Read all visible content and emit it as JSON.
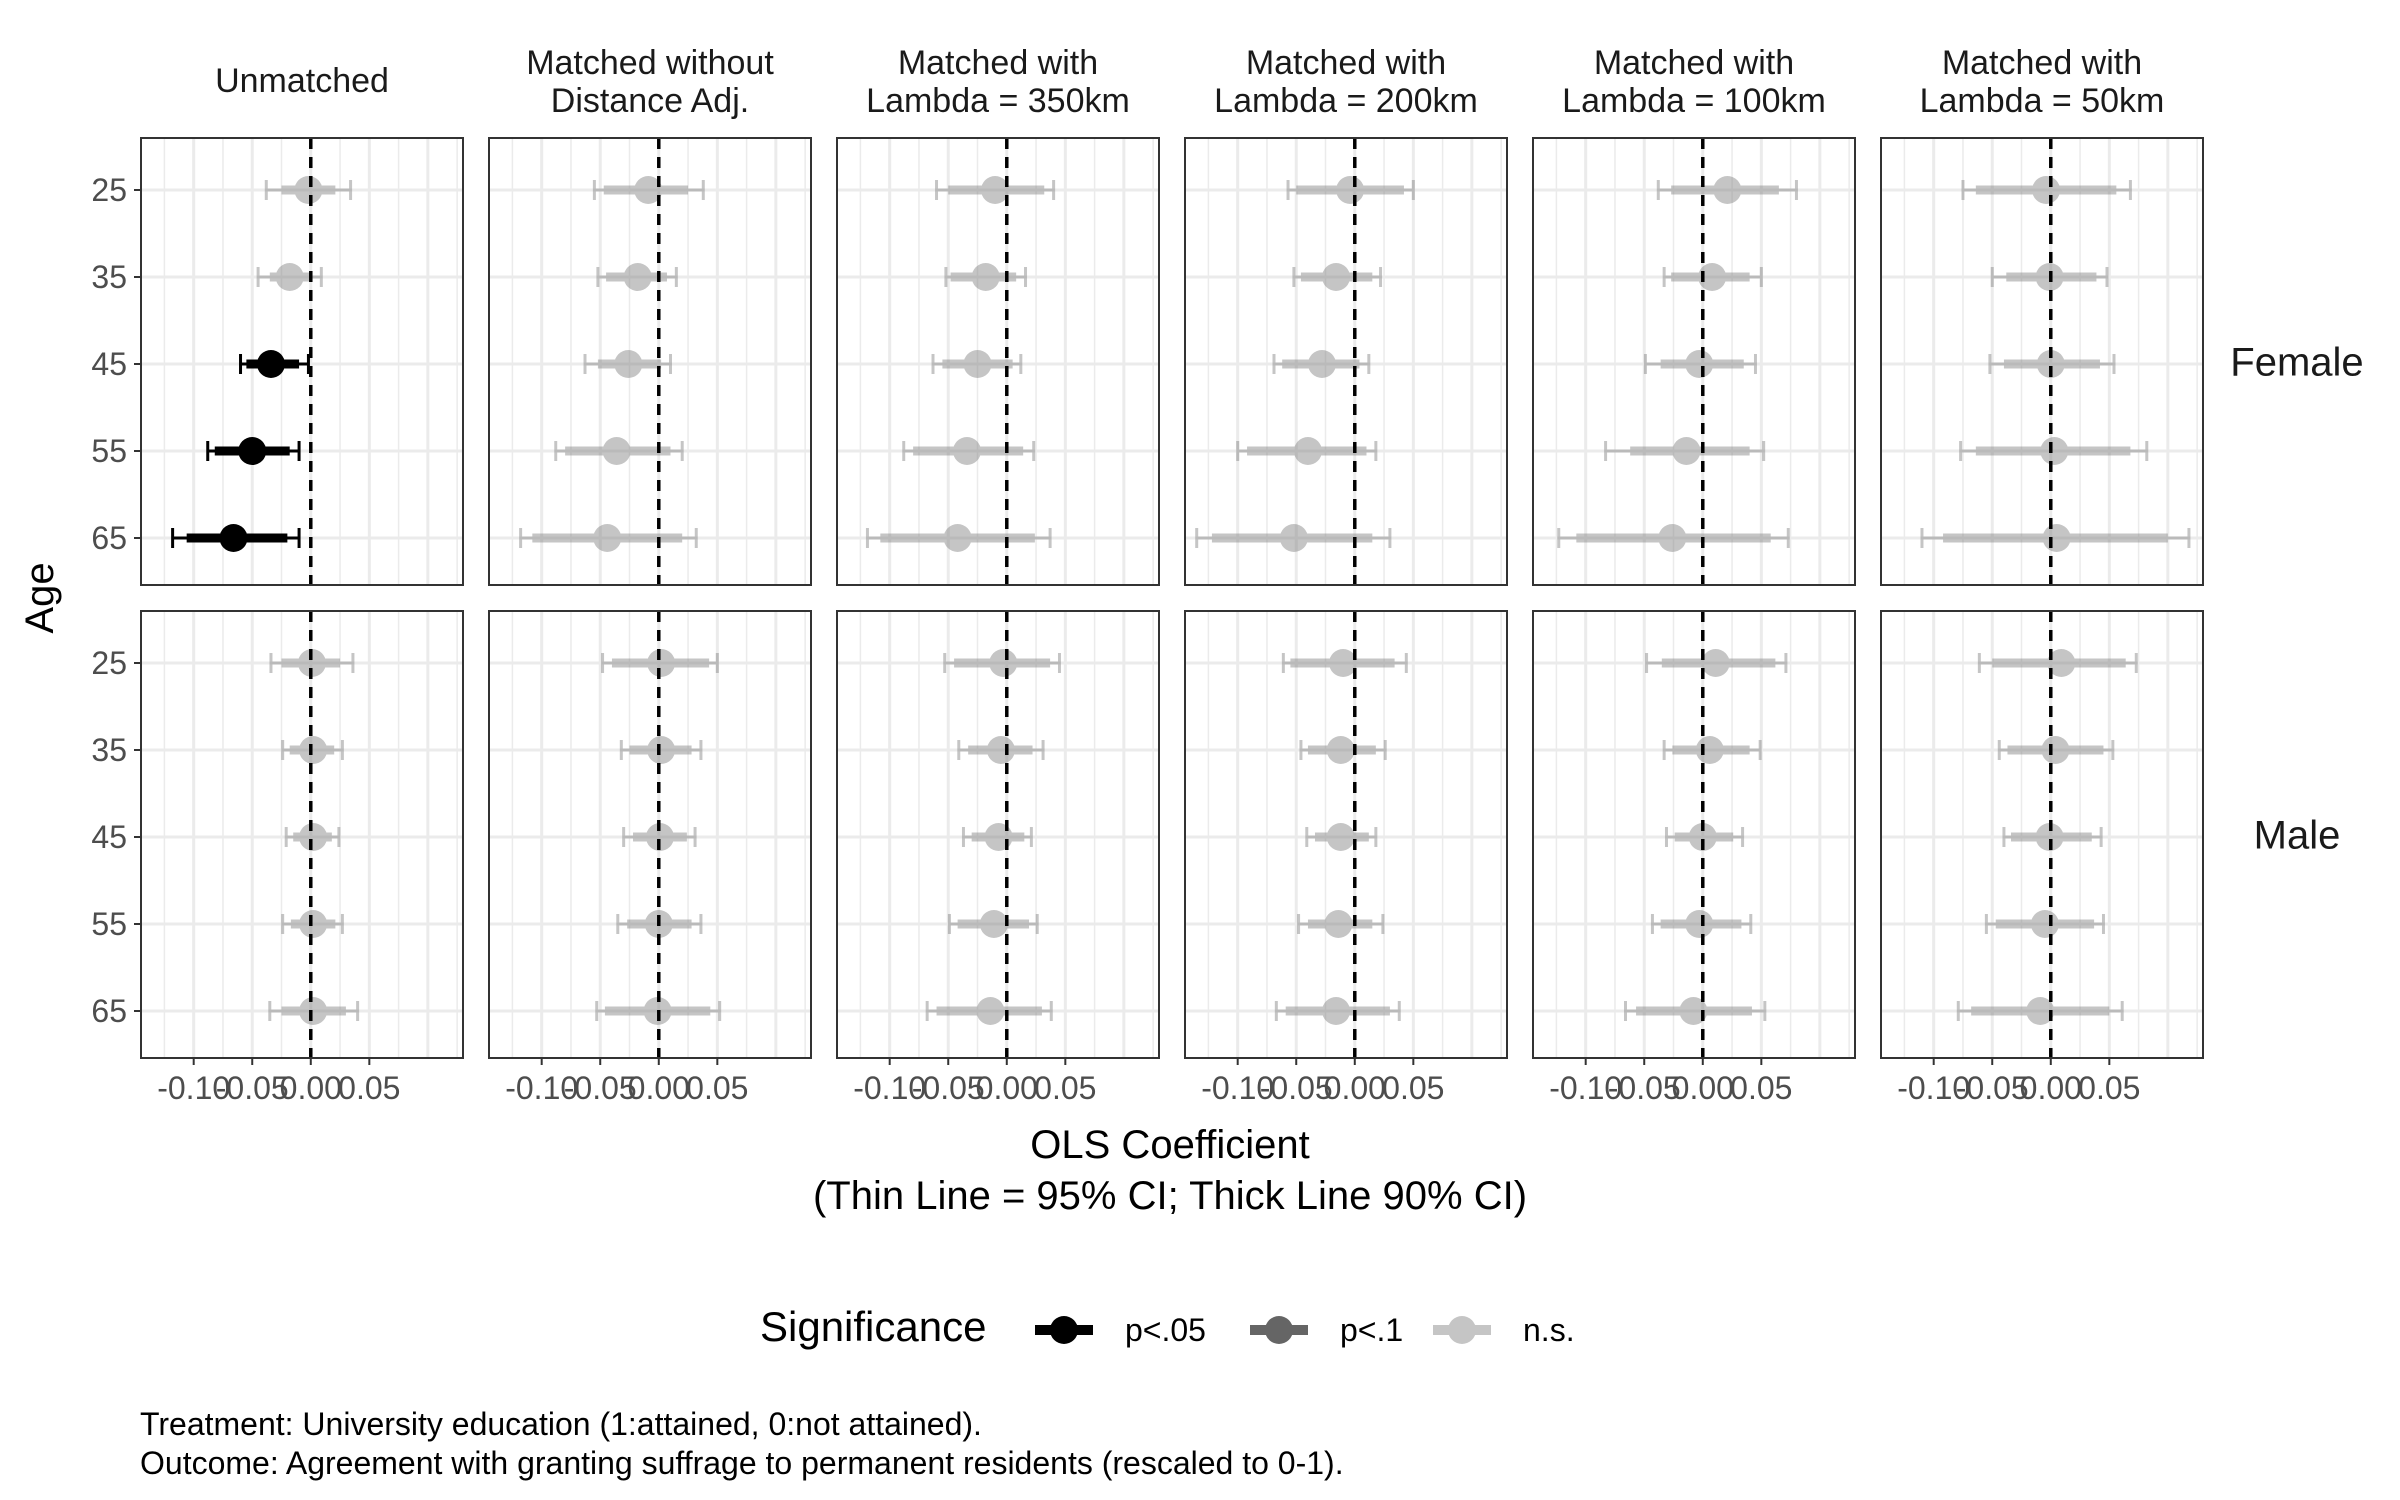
{
  "chart_data": {
    "type": "scatter",
    "subtype": "coefficient-plot-faceted",
    "x_axis": {
      "title_line1": "OLS Coefficient",
      "title_line2": "(Thin Line = 95% CI; Thick Line 90% CI)",
      "ticks": [
        -0.1,
        -0.05,
        0.0,
        0.05
      ],
      "tick_labels": [
        "-0.10",
        "-0.05",
        "0.00",
        "0.05"
      ],
      "xlim": [
        -0.145,
        0.13
      ],
      "reference_line": 0
    },
    "y_axis": {
      "title": "Age",
      "categories": [
        "25",
        "35",
        "45",
        "55",
        "65"
      ]
    },
    "grid": true,
    "columns": [
      {
        "id": "unmatched",
        "title": [
          "Unmatched"
        ]
      },
      {
        "id": "no-dist",
        "title": [
          "Matched without",
          "Distance Adj."
        ]
      },
      {
        "id": "l350",
        "title": [
          "Matched with",
          "Lambda = 350km"
        ]
      },
      {
        "id": "l200",
        "title": [
          "Matched with",
          "Lambda = 200km"
        ]
      },
      {
        "id": "l100",
        "title": [
          "Matched with",
          "Lambda = 100km"
        ]
      },
      {
        "id": "l50",
        "title": [
          "Matched with",
          "Lambda = 50km"
        ]
      }
    ],
    "rows": [
      {
        "id": "female",
        "label": "Female"
      },
      {
        "id": "male",
        "label": "Male"
      }
    ],
    "legend": {
      "title": "Significance",
      "position": "bottom",
      "items": [
        {
          "key": "sig05",
          "label": "p<.05"
        },
        {
          "key": "sig10",
          "label": "p<.1"
        },
        {
          "key": "ns",
          "label": "n.s."
        }
      ]
    },
    "panels": {
      "female": {
        "unmatched": [
          {
            "age": "25",
            "est": -0.002,
            "lo90": -0.025,
            "hi90": 0.021,
            "lo95": -0.038,
            "hi95": 0.034,
            "sig": "ns"
          },
          {
            "age": "35",
            "est": -0.018,
            "lo90": -0.035,
            "hi90": 0.001,
            "lo95": -0.045,
            "hi95": 0.009,
            "sig": "ns"
          },
          {
            "age": "45",
            "est": -0.034,
            "lo90": -0.055,
            "hi90": -0.01,
            "lo95": -0.06,
            "hi95": -0.002,
            "sig": "sig05"
          },
          {
            "age": "55",
            "est": -0.05,
            "lo90": -0.082,
            "hi90": -0.018,
            "lo95": -0.088,
            "hi95": -0.01,
            "sig": "sig05"
          },
          {
            "age": "65",
            "est": -0.066,
            "lo90": -0.106,
            "hi90": -0.02,
            "lo95": -0.118,
            "hi95": -0.01,
            "sig": "sig05"
          }
        ],
        "no-dist": [
          {
            "age": "25",
            "est": -0.009,
            "lo90": -0.047,
            "hi90": 0.025,
            "lo95": -0.055,
            "hi95": 0.038,
            "sig": "ns"
          },
          {
            "age": "35",
            "est": -0.018,
            "lo90": -0.045,
            "hi90": 0.007,
            "lo95": -0.052,
            "hi95": 0.015,
            "sig": "ns"
          },
          {
            "age": "45",
            "est": -0.026,
            "lo90": -0.052,
            "hi90": 0.002,
            "lo95": -0.063,
            "hi95": 0.01,
            "sig": "ns"
          },
          {
            "age": "55",
            "est": -0.036,
            "lo90": -0.08,
            "hi90": 0.01,
            "lo95": -0.088,
            "hi95": 0.02,
            "sig": "ns"
          },
          {
            "age": "65",
            "est": -0.044,
            "lo90": -0.108,
            "hi90": 0.02,
            "lo95": -0.118,
            "hi95": 0.032,
            "sig": "ns"
          }
        ],
        "l350": [
          {
            "age": "25",
            "est": -0.01,
            "lo90": -0.05,
            "hi90": 0.032,
            "lo95": -0.06,
            "hi95": 0.04,
            "sig": "ns"
          },
          {
            "age": "35",
            "est": -0.018,
            "lo90": -0.048,
            "hi90": 0.008,
            "lo95": -0.052,
            "hi95": 0.016,
            "sig": "ns"
          },
          {
            "age": "45",
            "est": -0.025,
            "lo90": -0.055,
            "hi90": 0.005,
            "lo95": -0.063,
            "hi95": 0.012,
            "sig": "ns"
          },
          {
            "age": "55",
            "est": -0.034,
            "lo90": -0.08,
            "hi90": 0.014,
            "lo95": -0.088,
            "hi95": 0.023,
            "sig": "ns"
          },
          {
            "age": "65",
            "est": -0.042,
            "lo90": -0.108,
            "hi90": 0.024,
            "lo95": -0.119,
            "hi95": 0.037,
            "sig": "ns"
          }
        ],
        "l200": [
          {
            "age": "25",
            "est": -0.004,
            "lo90": -0.05,
            "hi90": 0.042,
            "lo95": -0.057,
            "hi95": 0.05,
            "sig": "ns"
          },
          {
            "age": "35",
            "est": -0.016,
            "lo90": -0.046,
            "hi90": 0.015,
            "lo95": -0.052,
            "hi95": 0.022,
            "sig": "ns"
          },
          {
            "age": "45",
            "est": -0.028,
            "lo90": -0.062,
            "hi90": 0.004,
            "lo95": -0.069,
            "hi95": 0.012,
            "sig": "ns"
          },
          {
            "age": "55",
            "est": -0.04,
            "lo90": -0.092,
            "hi90": 0.01,
            "lo95": -0.1,
            "hi95": 0.018,
            "sig": "ns"
          },
          {
            "age": "65",
            "est": -0.052,
            "lo90": -0.122,
            "hi90": 0.015,
            "lo95": -0.135,
            "hi95": 0.03,
            "sig": "ns"
          }
        ],
        "l100": [
          {
            "age": "25",
            "est": 0.021,
            "lo90": -0.027,
            "hi90": 0.065,
            "lo95": -0.038,
            "hi95": 0.08,
            "sig": "ns"
          },
          {
            "age": "35",
            "est": 0.008,
            "lo90": -0.027,
            "hi90": 0.04,
            "lo95": -0.033,
            "hi95": 0.05,
            "sig": "ns"
          },
          {
            "age": "45",
            "est": -0.003,
            "lo90": -0.036,
            "hi90": 0.035,
            "lo95": -0.049,
            "hi95": 0.045,
            "sig": "ns"
          },
          {
            "age": "55",
            "est": -0.014,
            "lo90": -0.062,
            "hi90": 0.04,
            "lo95": -0.083,
            "hi95": 0.052,
            "sig": "ns"
          },
          {
            "age": "65",
            "est": -0.026,
            "lo90": -0.108,
            "hi90": 0.058,
            "lo95": -0.123,
            "hi95": 0.073,
            "sig": "ns"
          }
        ],
        "l50": [
          {
            "age": "25",
            "est": -0.004,
            "lo90": -0.064,
            "hi90": 0.056,
            "lo95": -0.075,
            "hi95": 0.068,
            "sig": "ns"
          },
          {
            "age": "35",
            "est": -0.001,
            "lo90": -0.038,
            "hi90": 0.039,
            "lo95": -0.05,
            "hi95": 0.048,
            "sig": "ns"
          },
          {
            "age": "45",
            "est": 0.0,
            "lo90": -0.04,
            "hi90": 0.042,
            "lo95": -0.052,
            "hi95": 0.054,
            "sig": "ns"
          },
          {
            "age": "55",
            "est": 0.003,
            "lo90": -0.064,
            "hi90": 0.068,
            "lo95": -0.077,
            "hi95": 0.082,
            "sig": "ns"
          },
          {
            "age": "65",
            "est": 0.005,
            "lo90": -0.092,
            "hi90": 0.1,
            "lo95": -0.11,
            "hi95": 0.118,
            "sig": "ns"
          }
        ]
      },
      "male": {
        "unmatched": [
          {
            "age": "25",
            "est": 0.001,
            "lo90": -0.025,
            "hi90": 0.025,
            "lo95": -0.034,
            "hi95": 0.036,
            "sig": "ns"
          },
          {
            "age": "35",
            "est": 0.002,
            "lo90": -0.018,
            "hi90": 0.02,
            "lo95": -0.024,
            "hi95": 0.027,
            "sig": "ns"
          },
          {
            "age": "45",
            "est": 0.002,
            "lo90": -0.015,
            "hi90": 0.018,
            "lo95": -0.021,
            "hi95": 0.024,
            "sig": "ns"
          },
          {
            "age": "55",
            "est": 0.002,
            "lo90": -0.017,
            "hi90": 0.021,
            "lo95": -0.024,
            "hi95": 0.027,
            "sig": "ns"
          },
          {
            "age": "65",
            "est": 0.002,
            "lo90": -0.025,
            "hi90": 0.03,
            "lo95": -0.035,
            "hi95": 0.04,
            "sig": "ns"
          }
        ],
        "no-dist": [
          {
            "age": "25",
            "est": 0.002,
            "lo90": -0.04,
            "hi90": 0.043,
            "lo95": -0.048,
            "hi95": 0.05,
            "sig": "ns"
          },
          {
            "age": "35",
            "est": 0.002,
            "lo90": -0.025,
            "hi90": 0.028,
            "lo95": -0.032,
            "hi95": 0.036,
            "sig": "ns"
          },
          {
            "age": "45",
            "est": 0.001,
            "lo90": -0.022,
            "hi90": 0.024,
            "lo95": -0.03,
            "hi95": 0.031,
            "sig": "ns"
          },
          {
            "age": "55",
            "est": 0.0,
            "lo90": -0.027,
            "hi90": 0.028,
            "lo95": -0.035,
            "hi95": 0.036,
            "sig": "ns"
          },
          {
            "age": "65",
            "est": -0.001,
            "lo90": -0.046,
            "hi90": 0.044,
            "lo95": -0.053,
            "hi95": 0.052,
            "sig": "ns"
          }
        ],
        "l350": [
          {
            "age": "25",
            "est": -0.003,
            "lo90": -0.045,
            "hi90": 0.037,
            "lo95": -0.053,
            "hi95": 0.045,
            "sig": "ns"
          },
          {
            "age": "35",
            "est": -0.005,
            "lo90": -0.033,
            "hi90": 0.022,
            "lo95": -0.041,
            "hi95": 0.031,
            "sig": "ns"
          },
          {
            "age": "45",
            "est": -0.007,
            "lo90": -0.03,
            "hi90": 0.015,
            "lo95": -0.037,
            "hi95": 0.021,
            "sig": "ns"
          },
          {
            "age": "55",
            "est": -0.011,
            "lo90": -0.042,
            "hi90": 0.019,
            "lo95": -0.049,
            "hi95": 0.026,
            "sig": "ns"
          },
          {
            "age": "65",
            "est": -0.014,
            "lo90": -0.06,
            "hi90": 0.03,
            "lo95": -0.068,
            "hi95": 0.038,
            "sig": "ns"
          }
        ],
        "l200": [
          {
            "age": "25",
            "est": -0.01,
            "lo90": -0.055,
            "hi90": 0.034,
            "lo95": -0.061,
            "hi95": 0.044,
            "sig": "ns"
          },
          {
            "age": "35",
            "est": -0.012,
            "lo90": -0.04,
            "hi90": 0.018,
            "lo95": -0.046,
            "hi95": 0.026,
            "sig": "ns"
          },
          {
            "age": "45",
            "est": -0.012,
            "lo90": -0.034,
            "hi90": 0.012,
            "lo95": -0.041,
            "hi95": 0.018,
            "sig": "ns"
          },
          {
            "age": "55",
            "est": -0.014,
            "lo90": -0.04,
            "hi90": 0.015,
            "lo95": -0.048,
            "hi95": 0.024,
            "sig": "ns"
          },
          {
            "age": "65",
            "est": -0.016,
            "lo90": -0.059,
            "hi90": 0.03,
            "lo95": -0.067,
            "hi95": 0.038,
            "sig": "ns"
          }
        ],
        "l100": [
          {
            "age": "25",
            "est": 0.011,
            "lo90": -0.035,
            "hi90": 0.062,
            "lo95": -0.048,
            "hi95": 0.071,
            "sig": "ns"
          },
          {
            "age": "35",
            "est": 0.006,
            "lo90": -0.026,
            "hi90": 0.04,
            "lo95": -0.033,
            "hi95": 0.049,
            "sig": "ns"
          },
          {
            "age": "45",
            "est": 0.0,
            "lo90": -0.024,
            "hi90": 0.026,
            "lo95": -0.031,
            "hi95": 0.034,
            "sig": "ns"
          },
          {
            "age": "55",
            "est": -0.003,
            "lo90": -0.036,
            "hi90": 0.033,
            "lo95": -0.043,
            "hi95": 0.041,
            "sig": "ns"
          },
          {
            "age": "65",
            "est": -0.008,
            "lo90": -0.057,
            "hi90": 0.042,
            "lo95": -0.066,
            "hi95": 0.053,
            "sig": "ns"
          }
        ],
        "l50": [
          {
            "age": "25",
            "est": 0.009,
            "lo90": -0.05,
            "hi90": 0.064,
            "lo95": -0.061,
            "hi95": 0.073,
            "sig": "ns"
          },
          {
            "age": "35",
            "est": 0.004,
            "lo90": -0.037,
            "hi90": 0.045,
            "lo95": -0.044,
            "hi95": 0.053,
            "sig": "ns"
          },
          {
            "age": "45",
            "est": -0.001,
            "lo90": -0.034,
            "hi90": 0.035,
            "lo95": -0.04,
            "hi95": 0.043,
            "sig": "ns"
          },
          {
            "age": "55",
            "est": -0.005,
            "lo90": -0.047,
            "hi90": 0.037,
            "lo95": -0.055,
            "hi95": 0.045,
            "sig": "ns"
          },
          {
            "age": "65",
            "est": -0.009,
            "lo90": -0.068,
            "hi90": 0.05,
            "lo95": -0.079,
            "hi95": 0.061,
            "sig": "ns"
          }
        ]
      }
    },
    "caption": [
      "Treatment: University education (1:attained, 0:not attained).",
      "Outcome: Agreement with granting suffrage to permanent residents (rescaled to 0-1)."
    ]
  },
  "styles": {
    "sig05": {
      "color": "#000000",
      "opacity": 1.0
    },
    "sig10": {
      "color": "#000000",
      "opacity": 0.6
    },
    "ns": {
      "color": "#808080",
      "opacity": 0.45
    },
    "grid_color": "#ebebeb",
    "panel_border": "#333333",
    "tick_text_color": "#4d4d4d"
  }
}
